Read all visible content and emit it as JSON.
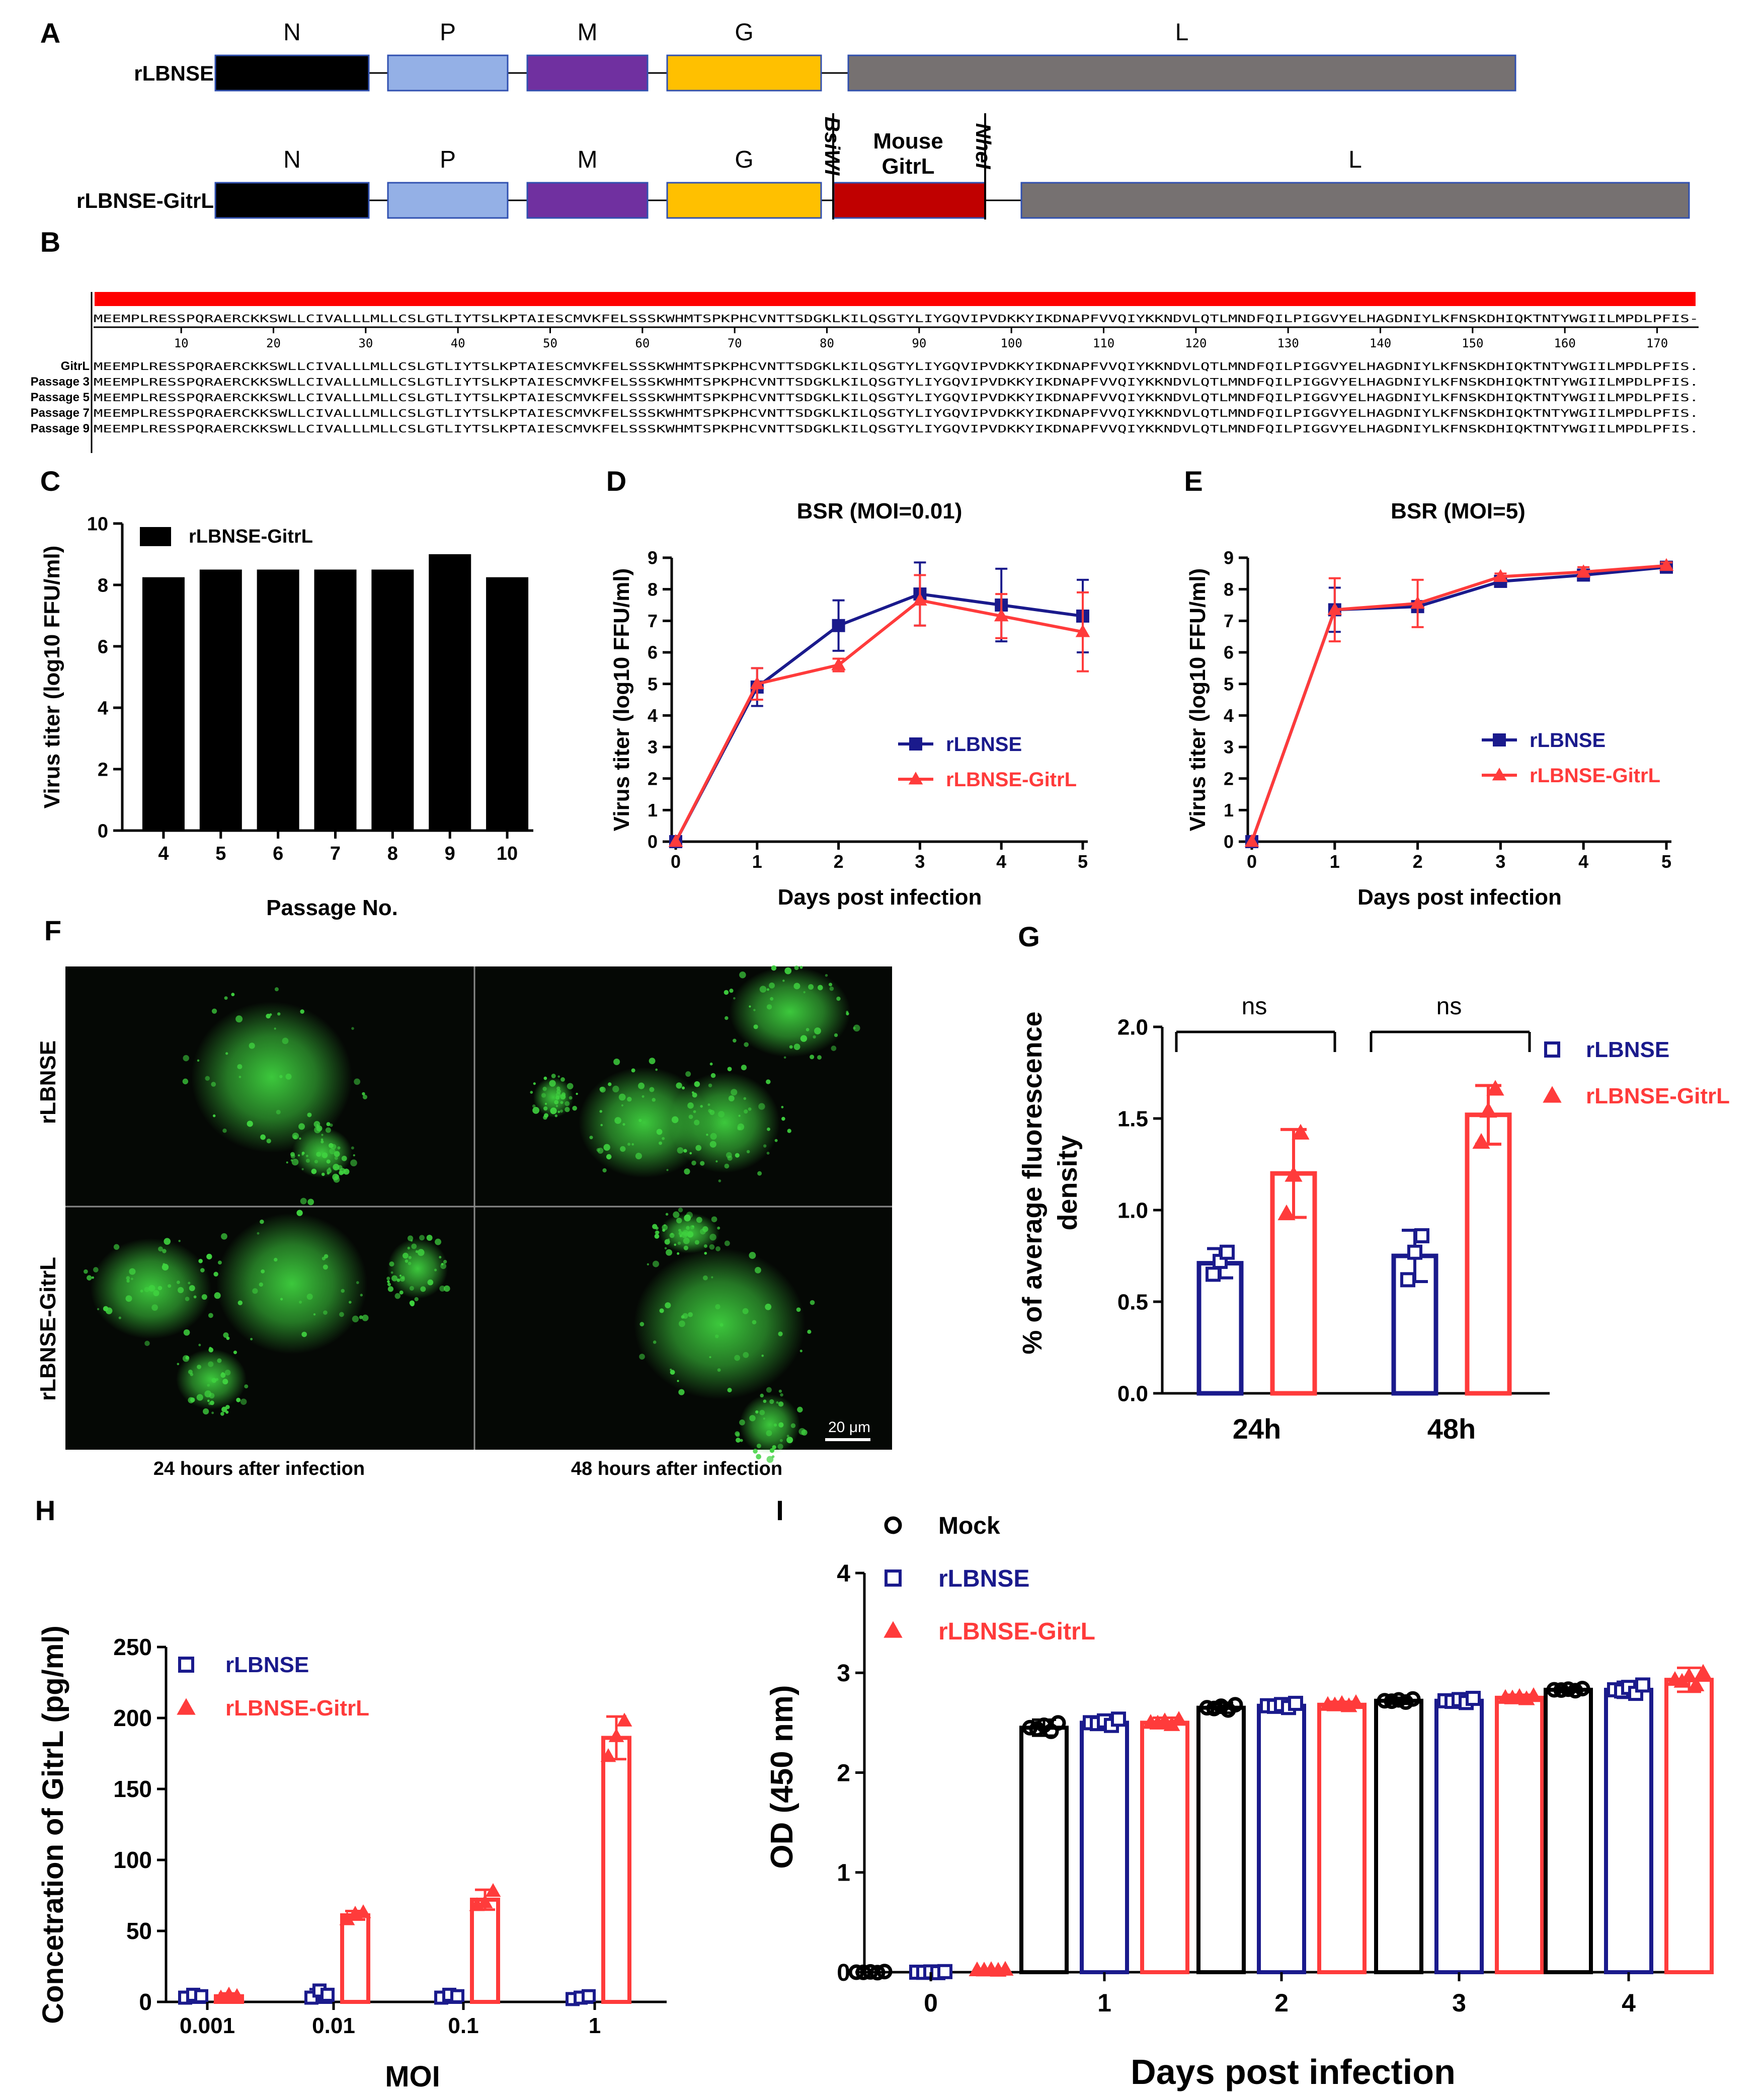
{
  "colors": {
    "navy": "#1a1a8c",
    "red": "#ff3b3b",
    "darkred": "#c00000",
    "black": "#000000",
    "N": "#000000",
    "P": "#94b0e6",
    "M": "#7030a0",
    "G": "#ffc000",
    "L": "#767171",
    "GitrL": "#c00000",
    "seqbar": "#ff0000",
    "micro_bg": "#050805",
    "micro_green": "#3fd23f"
  },
  "panelA": {
    "letter": "A",
    "construct1": {
      "name": "rLBNSE",
      "genes": [
        "N",
        "P",
        "M",
        "G",
        "L"
      ]
    },
    "construct2": {
      "name": "rLBNSE-GitrL",
      "genes": [
        "N",
        "P",
        "M",
        "G",
        "L"
      ],
      "insert": "Mouse GitrL",
      "site1": "BsiWI",
      "site2": "NheI"
    }
  },
  "panelB": {
    "letter": "B",
    "consensus": "MEEMPLRESSPQRAERCKKSWLLCIVALLLMLLCSLGTLIYTSLKPTAIESCMVKFELSSSKWHMTSPKPHCVNTTSDGKLKILQSGTYLIYGQVIPVDKKYIKDNAPFVVQIYKKNDVLQTLMNDFQILPIGGVYELHAGDNIYLKFNSKDHIQKTNTYWGIILMPDLPFIS-",
    "ruler": [
      "10",
      "20",
      "30",
      "40",
      "50",
      "60",
      "70",
      "80",
      "90",
      "100",
      "110",
      "120",
      "130",
      "140",
      "150",
      "160",
      "170"
    ],
    "rows": [
      {
        "label": "GitrL",
        "seq": "MEEMPLRESSPQRAERCKKSWLLCIVALLLMLLCSLGTLIYTSLKPTAIESCMVKFELSSSKWHMTSPKPHCVNTTSDGKLKILQSGTYLIYGQVIPVDKKYIKDNAPFVVQIYKKNDVLQTLMNDFQILPIGGVYELHAGDNIYLKFNSKDHIQKTNTYWGIILMPDLPFIS."
      },
      {
        "label": "Passage 3",
        "seq": "MEEMPLRESSPQRAERCKKSWLLCIVALLLMLLCSLGTLIYTSLKPTAIESCMVKFELSSSKWHMTSPKPHCVNTTSDGKLKILQSGTYLIYGQVIPVDKKYIKDNAPFVVQIYKKNDVLQTLMNDFQILPIGGVYELHAGDNIYLKFNSKDHIQKTNTYWGIILMPDLPFIS."
      },
      {
        "label": "Passage 5",
        "seq": "MEEMPLRESSPQRAERCKKSWLLCIVALLLMLLCSLGTLIYTSLKPTAIESCMVKFELSSSKWHMTSPKPHCVNTTSDGKLKILQSGTYLIYGQVIPVDKKYIKDNAPFVVQIYKKNDVLQTLMNDFQILPIGGVYELHAGDNIYLKFNSKDHIQKTNTYWGIILMPDLPFIS."
      },
      {
        "label": "Passage 7",
        "seq": "MEEMPLRESSPQRAERCKKSWLLCIVALLLMLLCSLGTLIYTSLKPTAIESCMVKFELSSSKWHMTSPKPHCVNTTSDGKLKILQSGTYLIYGQVIPVDKKYIKDNAPFVVQIYKKNDVLQTLMNDFQILPIGGVYELHAGDNIYLKFNSKDHIQKTNTYWGIILMPDLPFIS."
      },
      {
        "label": "Passage 9",
        "seq": "MEEMPLRESSPQRAERCKKSWLLCIVALLLMLLCSLGTLIYTSLKPTAIESCMVKFELSSSKWHMTSPKPHCVNTTSDGKLKILQSGTYLIYGQVIPVDKKYIKDNAPFVVQIYKKNDVLQTLMNDFQILPIGGVYELHAGDNIYLKFNSKDHIQKTNTYWGIILMPDLPFIS."
      }
    ]
  },
  "panelF": {
    "letter": "F",
    "row_labels": [
      "rLBNSE",
      "rLBNSE-GitrL"
    ],
    "col_labels": [
      "24 hours after infection",
      "48 hours after infection"
    ],
    "scalebar": "20 μm"
  },
  "chart_data": [
    {
      "panel": "C",
      "type": "bar",
      "categories": [
        "4",
        "5",
        "6",
        "7",
        "8",
        "9",
        "10"
      ],
      "series": [
        {
          "name": "rLBNSE-GitrL",
          "values": [
            8.25,
            8.5,
            8.5,
            8.5,
            8.5,
            9.0,
            8.25
          ]
        }
      ],
      "xlabel": "Passage No.",
      "ylabel": "Virus titer (log10 FFU/ml)",
      "ylim": [
        0,
        10
      ],
      "yticks": [
        "0",
        "2",
        "4",
        "6",
        "8",
        "10"
      ],
      "legend": "top-left"
    },
    {
      "panel": "D",
      "type": "line",
      "title": "BSR (MOI=0.01)",
      "x": [
        0,
        1,
        2,
        3,
        4,
        5
      ],
      "series": [
        {
          "name": "rLBNSE",
          "values": [
            0,
            4.9,
            6.85,
            7.85,
            7.5,
            7.15
          ],
          "err": [
            0,
            0.6,
            0.8,
            1.0,
            1.15,
            1.15
          ]
        },
        {
          "name": "rLBNSE-GitrL",
          "values": [
            0,
            5.0,
            5.6,
            7.65,
            7.15,
            6.65
          ],
          "err": [
            0,
            0.5,
            0.2,
            0.8,
            0.7,
            1.25
          ]
        }
      ],
      "xlabel": "Days post infection",
      "ylabel": "Virus titer (log10 FFU/ml)",
      "xticks": [
        "0",
        "1",
        "2",
        "3",
        "4",
        "5"
      ],
      "yticks": [
        "0",
        "1",
        "2",
        "3",
        "4",
        "5",
        "6",
        "7",
        "8",
        "9"
      ],
      "ylim": [
        0,
        9
      ],
      "legend": "bottom-right"
    },
    {
      "panel": "E",
      "type": "line",
      "title": "BSR (MOI=5)",
      "x": [
        0,
        1,
        2,
        3,
        4,
        5
      ],
      "series": [
        {
          "name": "rLBNSE",
          "values": [
            0,
            7.35,
            7.45,
            8.25,
            8.45,
            8.7
          ],
          "err": [
            0,
            0.7,
            0.15,
            0.1,
            0.1,
            0.1
          ]
        },
        {
          "name": "rLBNSE-GitrL",
          "values": [
            0,
            7.35,
            7.55,
            8.4,
            8.55,
            8.75
          ],
          "err": [
            0,
            1.0,
            0.75,
            0.1,
            0.15,
            0.1
          ]
        }
      ],
      "xlabel": "Days post infection",
      "ylabel": "Virus titer (log10 FFU/ml)",
      "xticks": [
        "0",
        "1",
        "2",
        "3",
        "4",
        "5"
      ],
      "yticks": [
        "0",
        "1",
        "2",
        "3",
        "4",
        "5",
        "6",
        "7",
        "8",
        "9"
      ],
      "ylim": [
        0,
        9
      ],
      "legend": "bottom-right"
    },
    {
      "panel": "G",
      "type": "bar",
      "categories": [
        "24h",
        "48h"
      ],
      "series": [
        {
          "name": "rLBNSE",
          "values": [
            0.71,
            0.75
          ],
          "err": [
            0.08,
            0.14
          ],
          "points": [
            [
              0.65,
              0.72,
              0.77
            ],
            [
              0.62,
              0.77,
              0.86
            ]
          ]
        },
        {
          "name": "rLBNSE-GitrL",
          "values": [
            1.2,
            1.52
          ],
          "err": [
            0.24,
            0.16
          ],
          "points": [
            [
              0.98,
              1.19,
              1.42
            ],
            [
              1.37,
              1.54,
              1.66
            ]
          ]
        }
      ],
      "ylabel": "% of average fluorescence density",
      "ylim": [
        0,
        2.0
      ],
      "yticks": [
        "0.0",
        "0.5",
        "1.0",
        "1.5",
        "2.0"
      ],
      "annotations": [
        "ns",
        "ns"
      ],
      "legend": "top-right"
    },
    {
      "panel": "H",
      "type": "bar",
      "categories": [
        "0.001",
        "0.01",
        "0.1",
        "1"
      ],
      "series": [
        {
          "name": "rLBNSE",
          "values": [
            4,
            5,
            4,
            3
          ],
          "err": [
            2,
            4,
            2,
            2
          ],
          "points": [
            [
              3,
              5,
              4
            ],
            [
              3,
              8,
              5
            ],
            [
              3,
              5,
              4
            ],
            [
              2,
              3,
              4
            ]
          ]
        },
        {
          "name": "rLBNSE-GitrL",
          "values": [
            4,
            61,
            72,
            186
          ],
          "err": [
            2,
            3,
            7,
            15
          ],
          "points": [
            [
              3,
              5,
              4
            ],
            [
              58,
              62,
              63
            ],
            [
              68,
              70,
              78
            ],
            [
              173,
              187,
              198
            ]
          ]
        }
      ],
      "xlabel": "MOI",
      "ylabel": "Concetration of GitrL (pg/ml)",
      "ylim": [
        0,
        250
      ],
      "yticks": [
        "0",
        "50",
        "100",
        "150",
        "200",
        "250"
      ],
      "legend": "top-left"
    },
    {
      "panel": "I",
      "type": "bar",
      "categories": [
        "0",
        "1",
        "2",
        "3",
        "4"
      ],
      "series": [
        {
          "name": "Mock",
          "values": [
            0.0,
            2.45,
            2.65,
            2.72,
            2.83
          ],
          "err": [
            0.01,
            0.08,
            0.05,
            0.03,
            0.02
          ]
        },
        {
          "name": "rLBNSE",
          "values": [
            0.0,
            2.5,
            2.67,
            2.72,
            2.83
          ],
          "err": [
            0.01,
            0.06,
            0.04,
            0.04,
            0.08
          ]
        },
        {
          "name": "rLBNSE-GitrL",
          "values": [
            0.02,
            2.5,
            2.68,
            2.75,
            2.93
          ],
          "err": [
            0.01,
            0.05,
            0.03,
            0.03,
            0.12
          ]
        }
      ],
      "xlabel": "Days post infection",
      "ylabel": "OD (450 nm)",
      "ylim": [
        0,
        4
      ],
      "yticks": [
        "0",
        "1",
        "2",
        "3",
        "4"
      ],
      "legend": "top-left"
    }
  ]
}
